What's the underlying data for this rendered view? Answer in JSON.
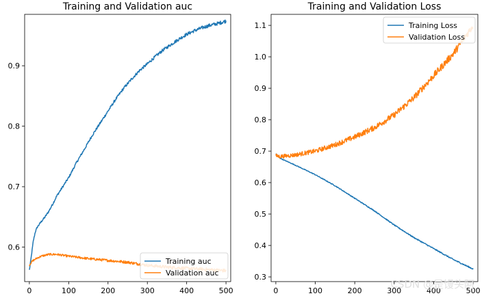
{
  "watermark": "CSDN @是馒头阿",
  "chart_data": [
    {
      "type": "line",
      "title": "Training and Validation auc",
      "xlabel": "",
      "ylabel": "",
      "xlim": [
        -12,
        512
      ],
      "ylim": [
        0.543,
        0.985
      ],
      "xticks": [
        0,
        100,
        200,
        300,
        400,
        500
      ],
      "yticks": [
        0.6,
        0.7,
        0.8,
        0.9
      ],
      "xtick_labels": [
        "0",
        "100",
        "200",
        "300",
        "400",
        "500"
      ],
      "ytick_labels": [
        "0.6",
        "0.7",
        "0.8",
        "0.9"
      ],
      "legend_position": "lower-right",
      "series": [
        {
          "name": "Training auc",
          "color": "#1f77b4",
          "x": [
            0,
            3,
            6,
            10,
            15,
            20,
            30,
            40,
            50,
            60,
            70,
            80,
            100,
            120,
            140,
            160,
            180,
            200,
            220,
            240,
            260,
            280,
            300,
            320,
            340,
            360,
            380,
            400,
            420,
            440,
            460,
            480,
            500
          ],
          "y": [
            0.562,
            0.575,
            0.59,
            0.61,
            0.625,
            0.633,
            0.642,
            0.65,
            0.66,
            0.672,
            0.685,
            0.695,
            0.715,
            0.74,
            0.762,
            0.785,
            0.805,
            0.825,
            0.845,
            0.863,
            0.878,
            0.892,
            0.903,
            0.915,
            0.926,
            0.935,
            0.944,
            0.952,
            0.958,
            0.963,
            0.967,
            0.97,
            0.974
          ],
          "noise": 0.003
        },
        {
          "name": "Validation auc",
          "color": "#ff7f0e",
          "x": [
            0,
            5,
            10,
            20,
            30,
            50,
            70,
            100,
            150,
            200,
            250,
            300,
            350,
            400,
            450,
            500
          ],
          "y": [
            0.57,
            0.575,
            0.578,
            0.582,
            0.585,
            0.588,
            0.588,
            0.585,
            0.581,
            0.578,
            0.575,
            0.57,
            0.567,
            0.565,
            0.563,
            0.561
          ],
          "noise": 0.003
        }
      ]
    },
    {
      "type": "line",
      "title": "Training and Validation Loss",
      "xlabel": "",
      "ylabel": "",
      "xlim": [
        -12,
        512
      ],
      "ylim": [
        0.285,
        1.135
      ],
      "xticks": [
        0,
        100,
        200,
        300,
        400,
        500
      ],
      "yticks": [
        0.3,
        0.4,
        0.5,
        0.6,
        0.7,
        0.8,
        0.9,
        1.0,
        1.1
      ],
      "xtick_labels": [
        "0",
        "100",
        "200",
        "300",
        "400",
        "500"
      ],
      "ytick_labels": [
        "0.3",
        "0.4",
        "0.5",
        "0.6",
        "0.7",
        "0.8",
        "0.9",
        "1.0",
        "1.1"
      ],
      "legend_position": "top-right",
      "series": [
        {
          "name": "Training Loss",
          "color": "#1f77b4",
          "x": [
            0,
            10,
            20,
            50,
            100,
            150,
            200,
            250,
            300,
            350,
            400,
            450,
            500
          ],
          "y": [
            0.692,
            0.678,
            0.672,
            0.655,
            0.625,
            0.59,
            0.55,
            0.51,
            0.465,
            0.425,
            0.39,
            0.355,
            0.325
          ],
          "noise": 0.002
        },
        {
          "name": "Validation Loss",
          "color": "#ff7f0e",
          "x": [
            0,
            10,
            20,
            50,
            100,
            150,
            200,
            250,
            300,
            350,
            400,
            450,
            500
          ],
          "y": [
            0.685,
            0.683,
            0.684,
            0.688,
            0.7,
            0.72,
            0.745,
            0.775,
            0.815,
            0.87,
            0.94,
            1.01,
            1.1
          ],
          "noise": 0.012
        }
      ]
    }
  ]
}
